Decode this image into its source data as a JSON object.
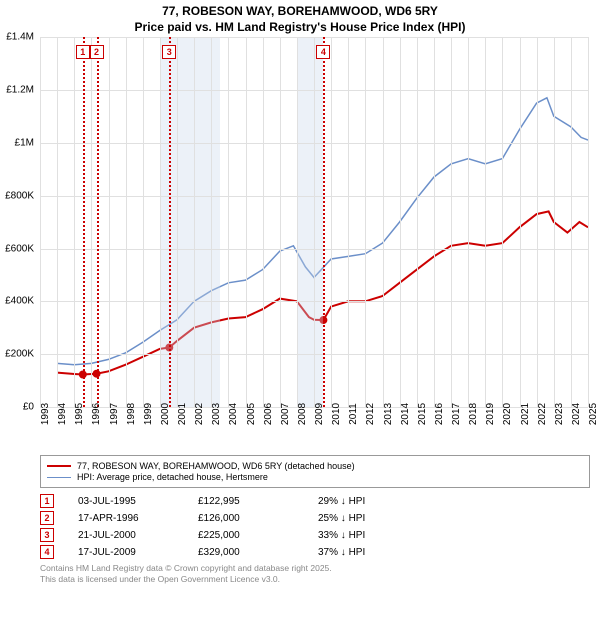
{
  "title": {
    "line1": "77, ROBESON WAY, BOREHAMWOOD, WD6 5RY",
    "line2": "Price paid vs. HM Land Registry's House Price Index (HPI)"
  },
  "chart": {
    "type": "line",
    "background_color": "#ffffff",
    "grid_color": "#e0e0e0",
    "x": {
      "min": 1993,
      "max": 2025,
      "ticks": [
        1993,
        1994,
        1995,
        1996,
        1997,
        1998,
        1999,
        2000,
        2001,
        2002,
        2003,
        2004,
        2005,
        2006,
        2007,
        2008,
        2009,
        2010,
        2011,
        2012,
        2013,
        2014,
        2015,
        2016,
        2017,
        2018,
        2019,
        2020,
        2021,
        2022,
        2023,
        2024,
        2025
      ]
    },
    "y": {
      "min": 0,
      "max": 1400000,
      "ticks": [
        {
          "v": 0,
          "label": "£0"
        },
        {
          "v": 200000,
          "label": "£200K"
        },
        {
          "v": 400000,
          "label": "£400K"
        },
        {
          "v": 600000,
          "label": "£600K"
        },
        {
          "v": 800000,
          "label": "£800K"
        },
        {
          "v": 1000000,
          "label": "£1M"
        },
        {
          "v": 1200000,
          "label": "£1.2M"
        },
        {
          "v": 1400000,
          "label": "£1.4M"
        }
      ]
    },
    "shaded_regions": [
      {
        "from": 2000.0,
        "to": 2003.5
      },
      {
        "from": 2008.0,
        "to": 2009.5
      }
    ],
    "series": [
      {
        "id": "price_paid",
        "label": "77, ROBESON WAY, BOREHAMWOOD, WD6 5RY (detached house)",
        "color": "#cc0000",
        "width": 2,
        "points": [
          [
            1994.0,
            130000
          ],
          [
            1995.0,
            125000
          ],
          [
            1995.5,
            122995
          ],
          [
            1996.0,
            125000
          ],
          [
            1996.3,
            126000
          ],
          [
            1997.0,
            135000
          ],
          [
            1998.0,
            160000
          ],
          [
            1999.0,
            190000
          ],
          [
            2000.0,
            220000
          ],
          [
            2000.55,
            225000
          ],
          [
            2001.0,
            250000
          ],
          [
            2002.0,
            300000
          ],
          [
            2003.0,
            320000
          ],
          [
            2004.0,
            335000
          ],
          [
            2005.0,
            340000
          ],
          [
            2006.0,
            370000
          ],
          [
            2007.0,
            410000
          ],
          [
            2008.0,
            400000
          ],
          [
            2008.7,
            340000
          ],
          [
            2009.0,
            330000
          ],
          [
            2009.55,
            329000
          ],
          [
            2010.0,
            380000
          ],
          [
            2011.0,
            400000
          ],
          [
            2012.0,
            400000
          ],
          [
            2013.0,
            420000
          ],
          [
            2014.0,
            470000
          ],
          [
            2015.0,
            520000
          ],
          [
            2016.0,
            570000
          ],
          [
            2017.0,
            610000
          ],
          [
            2018.0,
            620000
          ],
          [
            2019.0,
            610000
          ],
          [
            2020.0,
            620000
          ],
          [
            2021.0,
            680000
          ],
          [
            2022.0,
            730000
          ],
          [
            2022.7,
            740000
          ],
          [
            2023.0,
            700000
          ],
          [
            2023.8,
            660000
          ],
          [
            2024.5,
            700000
          ],
          [
            2025.0,
            680000
          ]
        ],
        "markers": [
          {
            "x": 1995.5,
            "y": 122995
          },
          {
            "x": 1996.3,
            "y": 126000
          },
          {
            "x": 2000.55,
            "y": 225000
          },
          {
            "x": 2009.55,
            "y": 329000
          }
        ]
      },
      {
        "id": "hpi",
        "label": "HPI: Average price, detached house, Hertsmere",
        "color": "#6b8fc9",
        "width": 1.5,
        "points": [
          [
            1994.0,
            165000
          ],
          [
            1995.0,
            160000
          ],
          [
            1996.0,
            165000
          ],
          [
            1997.0,
            180000
          ],
          [
            1998.0,
            205000
          ],
          [
            1999.0,
            245000
          ],
          [
            2000.0,
            290000
          ],
          [
            2001.0,
            330000
          ],
          [
            2002.0,
            400000
          ],
          [
            2003.0,
            440000
          ],
          [
            2004.0,
            470000
          ],
          [
            2005.0,
            480000
          ],
          [
            2006.0,
            520000
          ],
          [
            2007.0,
            590000
          ],
          [
            2007.8,
            610000
          ],
          [
            2008.5,
            530000
          ],
          [
            2009.0,
            490000
          ],
          [
            2010.0,
            560000
          ],
          [
            2011.0,
            570000
          ],
          [
            2012.0,
            580000
          ],
          [
            2013.0,
            620000
          ],
          [
            2014.0,
            700000
          ],
          [
            2015.0,
            790000
          ],
          [
            2016.0,
            870000
          ],
          [
            2017.0,
            920000
          ],
          [
            2018.0,
            940000
          ],
          [
            2019.0,
            920000
          ],
          [
            2020.0,
            940000
          ],
          [
            2021.0,
            1050000
          ],
          [
            2022.0,
            1150000
          ],
          [
            2022.6,
            1170000
          ],
          [
            2023.0,
            1100000
          ],
          [
            2024.0,
            1060000
          ],
          [
            2024.6,
            1020000
          ],
          [
            2025.0,
            1010000
          ]
        ]
      }
    ],
    "events": [
      {
        "n": "1",
        "x": 1995.5,
        "color": "#cc0000",
        "date": "03-JUL-1995",
        "price": "£122,995",
        "delta": "29% ↓ HPI"
      },
      {
        "n": "2",
        "x": 1996.3,
        "color": "#cc0000",
        "date": "17-APR-1996",
        "price": "£126,000",
        "delta": "25% ↓ HPI"
      },
      {
        "n": "3",
        "x": 2000.55,
        "color": "#cc0000",
        "date": "21-JUL-2000",
        "price": "£225,000",
        "delta": "33% ↓ HPI"
      },
      {
        "n": "4",
        "x": 2009.55,
        "color": "#cc0000",
        "date": "17-JUL-2009",
        "price": "£329,000",
        "delta": "37% ↓ HPI"
      }
    ]
  },
  "footer": {
    "line1": "Contains HM Land Registry data © Crown copyright and database right 2025.",
    "line2": "This data is licensed under the Open Government Licence v3.0."
  }
}
